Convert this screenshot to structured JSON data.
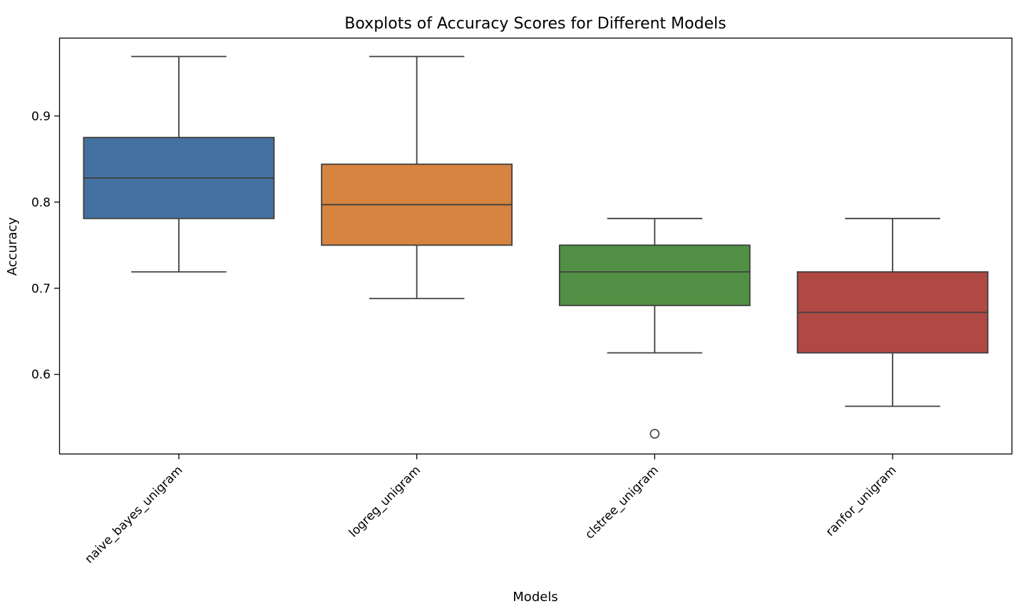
{
  "chart_data": {
    "type": "boxplot",
    "title": "Boxplots of Accuracy Scores for Different Models",
    "xlabel": "Models",
    "ylabel": "Accuracy",
    "categories": [
      "naive_bayes_unigram",
      "logreg_unigram",
      "clstree_unigram",
      "ranfor_unigram"
    ],
    "yticks": [
      0.6,
      0.7,
      0.8,
      0.9
    ],
    "yticklabels": [
      "0.6",
      "0.7",
      "0.8",
      "0.9"
    ],
    "ylim": [
      0.508,
      0.99
    ],
    "grid": false,
    "series": [
      {
        "category": "naive_bayes_unigram",
        "whisker_low": 0.719,
        "q1": 0.781,
        "median": 0.828,
        "q3": 0.875,
        "whisker_high": 0.969,
        "outliers": [],
        "color": "#4472a0"
      },
      {
        "category": "logreg_unigram",
        "whisker_low": 0.688,
        "q1": 0.75,
        "median": 0.797,
        "q3": 0.844,
        "whisker_high": 0.969,
        "outliers": [],
        "color": "#d68440"
      },
      {
        "category": "clstree_unigram",
        "whisker_low": 0.625,
        "q1": 0.68,
        "median": 0.719,
        "q3": 0.75,
        "whisker_high": 0.781,
        "outliers": [
          0.531
        ],
        "color": "#519044"
      },
      {
        "category": "ranfor_unigram",
        "whisker_low": 0.563,
        "q1": 0.625,
        "median": 0.672,
        "q3": 0.719,
        "whisker_high": 0.781,
        "outliers": [],
        "color": "#b04843"
      }
    ]
  }
}
